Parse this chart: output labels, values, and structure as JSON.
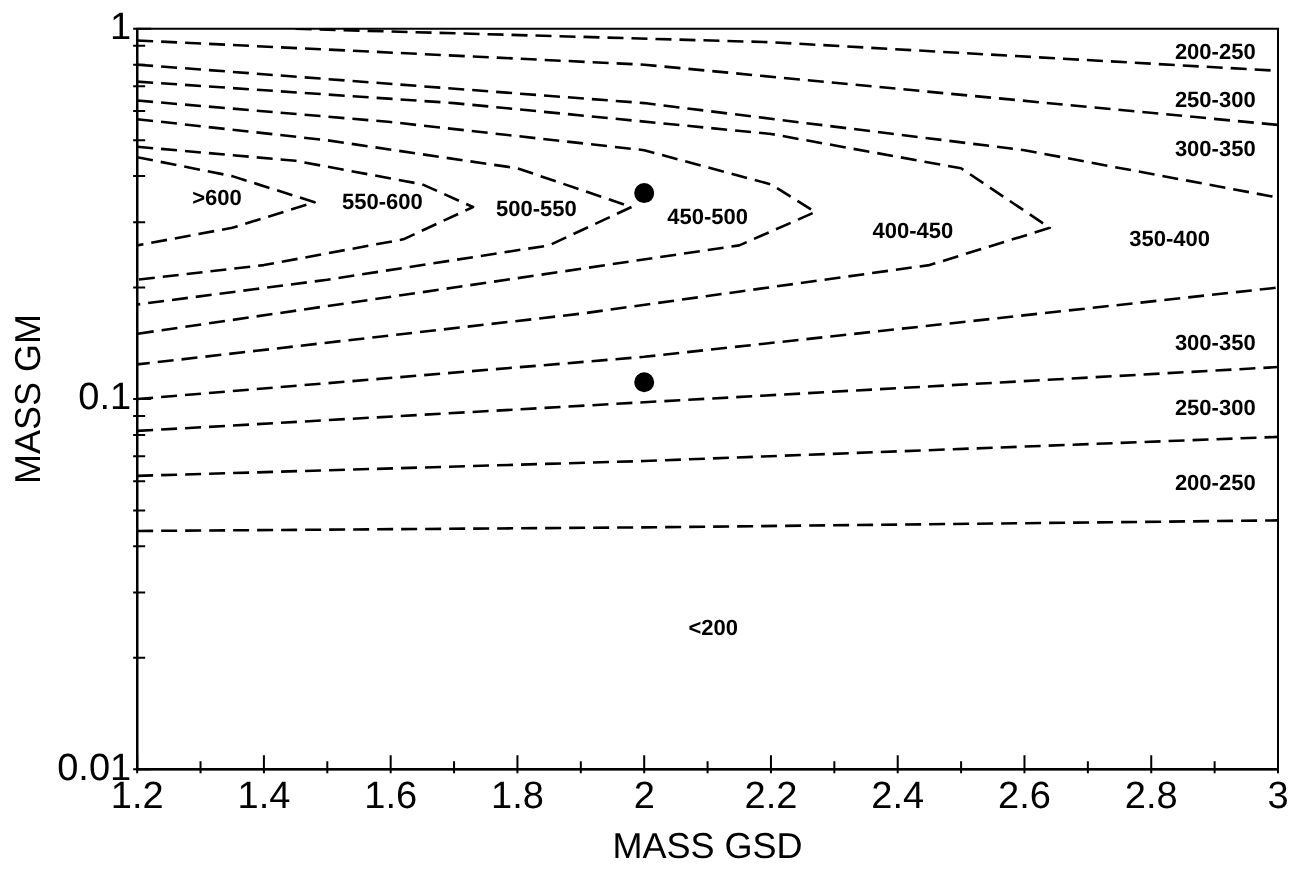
{
  "chart_data": {
    "type": "line",
    "xlabel": "MASS GSD",
    "ylabel": "MASS GM",
    "log": "y",
    "grid": false,
    "legend": false,
    "line_style": "dashed",
    "xlim": [
      1.2,
      3
    ],
    "xticks": [
      1.2,
      {
        "value": 1.3,
        "label": null
      },
      1.4,
      {
        "value": 1.5,
        "label": null
      },
      1.6,
      {
        "value": 1.7,
        "label": null
      },
      1.8,
      {
        "value": 1.9,
        "label": null
      },
      2,
      {
        "value": 2.1,
        "label": null
      },
      2.2,
      {
        "value": 2.3,
        "label": null
      },
      2.4,
      {
        "value": 2.5,
        "label": null
      },
      2.6,
      {
        "value": 2.7,
        "label": null
      },
      2.8,
      {
        "value": 2.9,
        "label": null
      },
      3
    ],
    "ylim": [
      0.01,
      1
    ],
    "yticks": [
      0.01,
      {
        "value": 0.02,
        "label": null
      },
      {
        "value": 0.03,
        "label": null
      },
      {
        "value": 0.04,
        "label": null
      },
      {
        "value": 0.05,
        "label": null
      },
      {
        "value": 0.06,
        "label": null
      },
      {
        "value": 0.07,
        "label": null
      },
      {
        "value": 0.08,
        "label": null
      },
      {
        "value": 0.09,
        "label": null
      },
      0.1,
      {
        "value": 0.2,
        "label": null
      },
      {
        "value": 0.3,
        "label": null
      },
      {
        "value": 0.4,
        "label": null
      },
      {
        "value": 0.5,
        "label": null
      },
      {
        "value": 0.6,
        "label": null
      },
      {
        "value": 0.7,
        "label": null
      },
      {
        "value": 0.8,
        "label": null
      },
      {
        "value": 0.9,
        "label": null
      },
      1
    ],
    "series": [
      {
        "color": "#000000",
        "x": [
          1.2,
          1.35,
          1.48,
          1.35,
          1.2
        ],
        "values": [
          0.45,
          0.4,
          0.34,
          0.29,
          0.26
        ]
      },
      {
        "color": "#000000",
        "x": [
          1.2,
          1.45,
          1.65,
          1.73,
          1.62,
          1.4,
          1.2
        ],
        "values": [
          0.48,
          0.44,
          0.38,
          0.33,
          0.27,
          0.23,
          0.21
        ]
      },
      {
        "color": "#000000",
        "x": [
          1.2,
          1.5,
          1.8,
          1.98,
          1.85,
          1.5,
          1.2
        ],
        "values": [
          0.57,
          0.5,
          0.42,
          0.33,
          0.26,
          0.21,
          0.18
        ]
      },
      {
        "color": "#000000",
        "x": [
          1.2,
          1.6,
          2,
          2.2,
          2.27,
          2.15,
          1.7,
          1.2
        ],
        "values": [
          0.64,
          0.56,
          0.47,
          0.38,
          0.32,
          0.26,
          0.2,
          0.15
        ]
      },
      {
        "color": "#000000",
        "x": [
          1.2,
          1.7,
          2.2,
          2.5,
          2.64,
          2.45,
          1.9,
          1.2
        ],
        "values": [
          0.72,
          0.63,
          0.52,
          0.42,
          0.29,
          0.23,
          0.17,
          0.124
        ]
      },
      {
        "color": "#000000",
        "x": [
          1.2,
          2,
          2.6,
          3
        ],
        "values": [
          0.8,
          0.63,
          0.47,
          0.35
        ]
      },
      {
        "color": "#000000",
        "x": [
          1.2,
          2,
          3
        ],
        "values": [
          0.1,
          0.13,
          0.2
        ]
      },
      {
        "color": "#000000",
        "x": [
          1.2,
          2,
          3
        ],
        "values": [
          0.93,
          0.8,
          0.55
        ]
      },
      {
        "color": "#000000",
        "x": [
          1.2,
          2,
          3
        ],
        "values": [
          0.082,
          0.098,
          0.122
        ]
      },
      {
        "color": "#000000",
        "x": [
          1.45,
          2.2,
          3
        ],
        "values": [
          1,
          0.92,
          0.77
        ]
      },
      {
        "color": "#000000",
        "x": [
          1.2,
          2,
          3
        ],
        "values": [
          0.062,
          0.068,
          0.079
        ]
      },
      {
        "color": "#000000",
        "x": [
          1.2,
          2,
          3
        ],
        "values": [
          0.044,
          0.045,
          0.047
        ]
      },
      {
        "type": "scatter",
        "color": "#000000",
        "marker": "circle",
        "x": [
          2,
          2
        ],
        "values": [
          0.36,
          0.111
        ]
      }
    ],
    "annotations": [
      ">600",
      "550-600",
      "500-550",
      "450-500",
      "400-450",
      "350-400",
      "200-250",
      "250-300",
      "300-350",
      "300-350",
      "250-300",
      "200-250",
      "<200"
    ]
  }
}
